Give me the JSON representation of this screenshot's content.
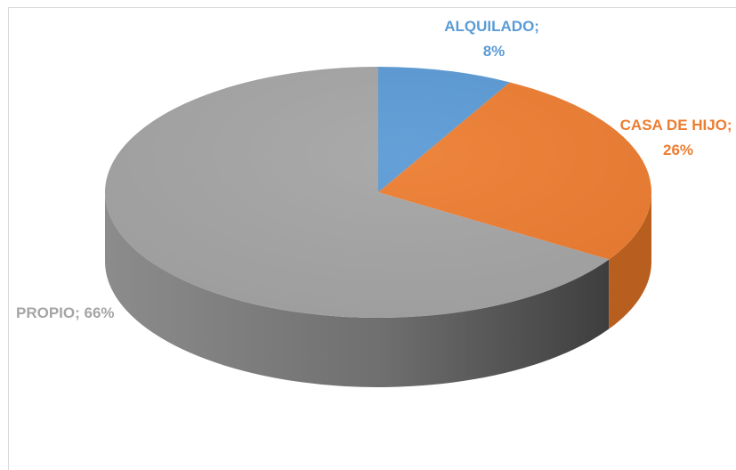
{
  "chart_data": {
    "type": "pie",
    "style": "3d",
    "title": "",
    "categories": [
      "ALQUILADO",
      "CASA DE HIJO",
      "PROPIO"
    ],
    "values": [
      8,
      26,
      66
    ],
    "unit": "%",
    "colors": [
      "#5b9bd5",
      "#ed7d31",
      "#a5a5a5"
    ],
    "side_colors": [
      "#3f78ad",
      "#b85e1f",
      "#6e6e6e"
    ],
    "labels": [
      {
        "line1": "ALQUILADO;",
        "line2": "8%"
      },
      {
        "line1": "CASA DE HIJO;",
        "line2": "26%"
      },
      {
        "line1": "PROPIO; 66%",
        "line2": ""
      }
    ],
    "legend": "none"
  }
}
